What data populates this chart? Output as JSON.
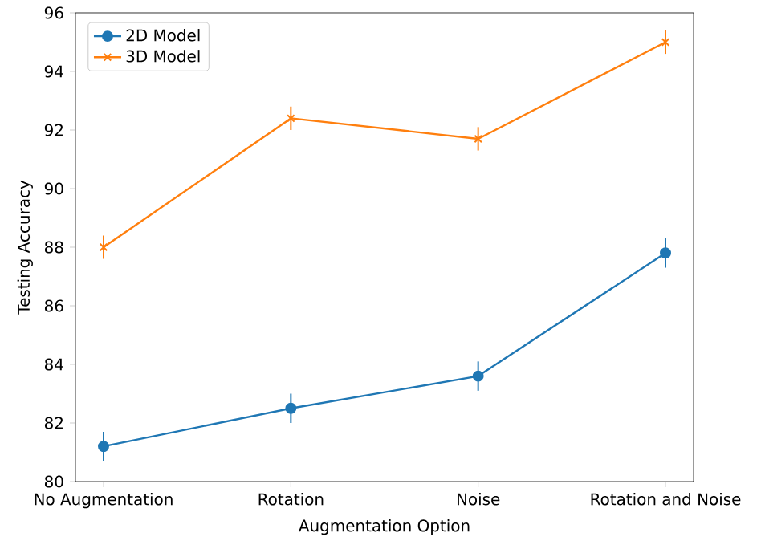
{
  "chart_data": {
    "type": "line",
    "xlabel": "Augmentation Option",
    "ylabel": "Testing Accuracy",
    "categories": [
      "No Augmentation",
      "Rotation",
      "Noise",
      "Rotation and Noise"
    ],
    "series": [
      {
        "name": "2D Model",
        "color": "#1f77b4",
        "marker": "circle",
        "values": [
          81.2,
          82.5,
          83.6,
          87.8
        ],
        "errors": [
          0.5,
          0.5,
          0.5,
          0.5
        ]
      },
      {
        "name": "3D Model",
        "color": "#ff7f0e",
        "marker": "cross",
        "values": [
          88.0,
          92.4,
          91.7,
          95.0
        ],
        "errors": [
          0.4,
          0.4,
          0.4,
          0.4
        ]
      }
    ],
    "ylim": [
      80,
      96
    ],
    "yticks": [
      80,
      82,
      84,
      86,
      88,
      90,
      92,
      94,
      96
    ],
    "grid": false,
    "legend": "top left"
  }
}
